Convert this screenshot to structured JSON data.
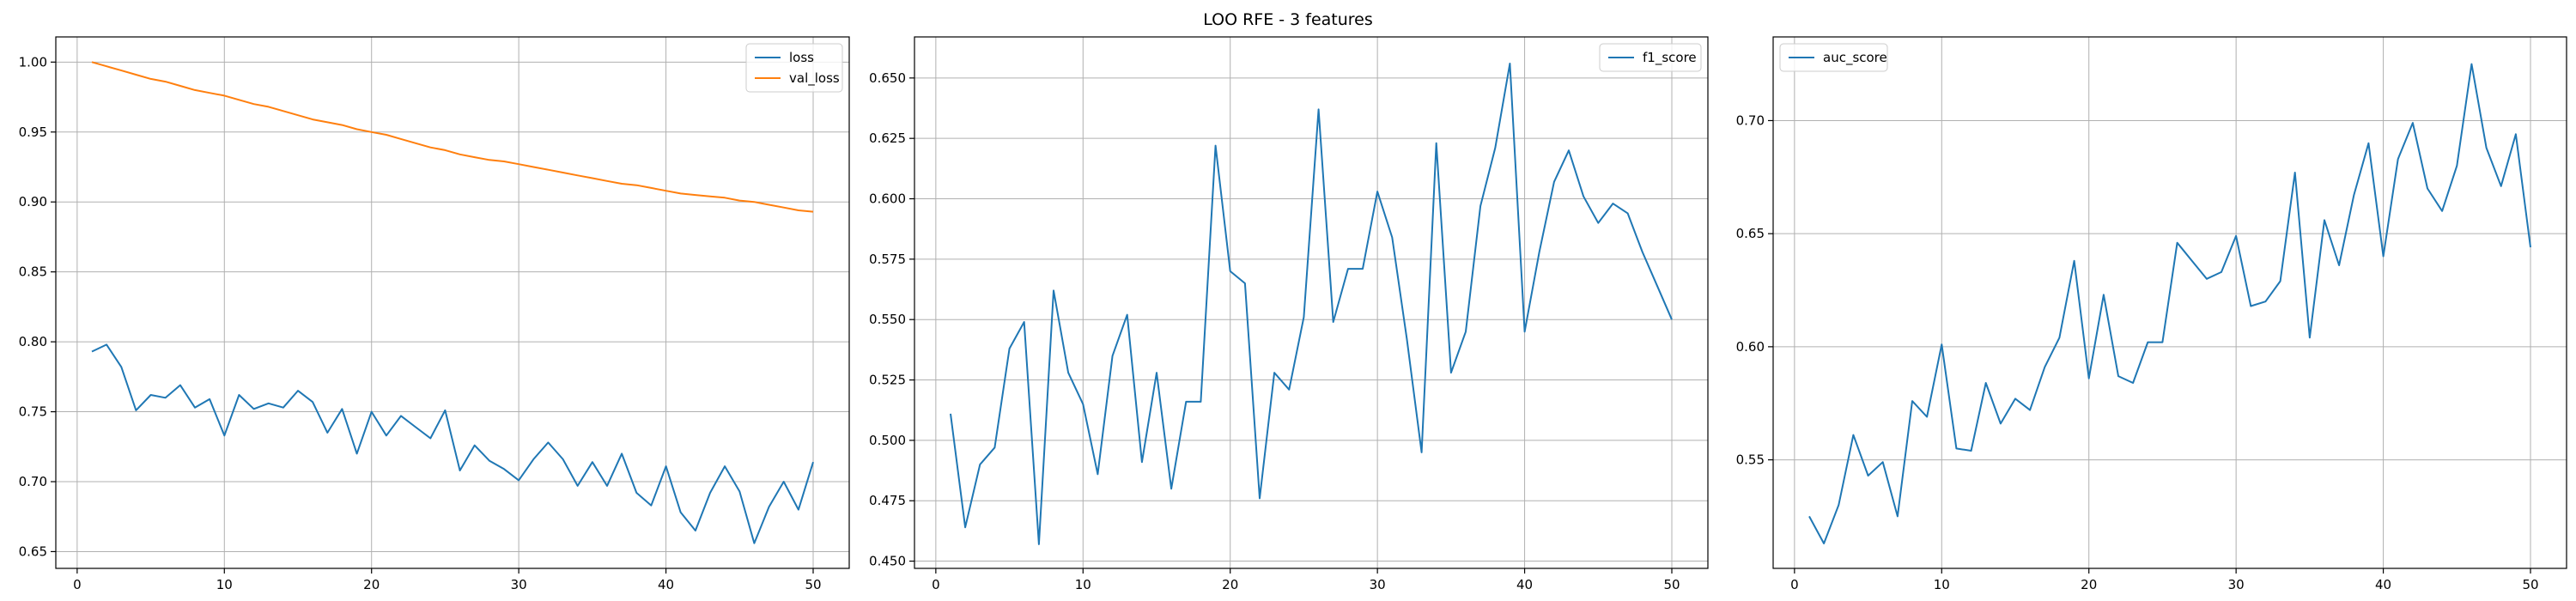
{
  "title": "LOO RFE - 3 features",
  "colors": {
    "loss": "#1f77b4",
    "val_loss": "#ff7f0e",
    "grid": "#b0b0b0",
    "axes": "#000000"
  },
  "chart_data": [
    {
      "type": "line",
      "x": [
        1,
        2,
        3,
        4,
        5,
        6,
        7,
        8,
        9,
        10,
        11,
        12,
        13,
        14,
        15,
        16,
        17,
        18,
        19,
        20,
        21,
        22,
        23,
        24,
        25,
        26,
        27,
        28,
        29,
        30,
        31,
        32,
        33,
        34,
        35,
        36,
        37,
        38,
        39,
        40,
        41,
        42,
        43,
        44,
        45,
        46,
        47,
        48,
        49,
        50
      ],
      "series": [
        {
          "name": "loss",
          "color": "#1f77b4",
          "values": [
            0.793,
            0.798,
            0.782,
            0.751,
            0.762,
            0.76,
            0.769,
            0.753,
            0.759,
            0.733,
            0.762,
            0.752,
            0.756,
            0.753,
            0.765,
            0.757,
            0.735,
            0.752,
            0.72,
            0.75,
            0.733,
            0.747,
            0.739,
            0.731,
            0.751,
            0.708,
            0.726,
            0.715,
            0.709,
            0.701,
            0.716,
            0.728,
            0.716,
            0.697,
            0.714,
            0.697,
            0.72,
            0.692,
            0.683,
            0.711,
            0.678,
            0.665,
            0.692,
            0.711,
            0.693,
            0.656,
            0.682,
            0.7,
            0.68,
            0.714
          ]
        },
        {
          "name": "val_loss",
          "color": "#ff7f0e",
          "values": [
            1.0,
            0.997,
            0.994,
            0.991,
            0.988,
            0.986,
            0.983,
            0.98,
            0.978,
            0.976,
            0.973,
            0.97,
            0.968,
            0.965,
            0.962,
            0.959,
            0.957,
            0.955,
            0.952,
            0.95,
            0.948,
            0.945,
            0.942,
            0.939,
            0.937,
            0.934,
            0.932,
            0.93,
            0.929,
            0.927,
            0.925,
            0.923,
            0.921,
            0.919,
            0.917,
            0.915,
            0.913,
            0.912,
            0.91,
            0.908,
            0.906,
            0.905,
            0.904,
            0.903,
            0.901,
            0.9,
            0.898,
            0.896,
            0.894,
            0.893
          ]
        }
      ],
      "xlim": [
        -1.45,
        52.45
      ],
      "ylim": [
        0.638,
        1.018
      ],
      "xticks": [
        "0",
        "10",
        "20",
        "30",
        "40",
        "50"
      ],
      "yticks": [
        "0.65",
        "0.70",
        "0.75",
        "0.80",
        "0.85",
        "0.90",
        "0.95",
        "1.00"
      ],
      "grid": true,
      "legend": "top-right"
    },
    {
      "type": "line",
      "x": [
        1,
        2,
        3,
        4,
        5,
        6,
        7,
        8,
        9,
        10,
        11,
        12,
        13,
        14,
        15,
        16,
        17,
        18,
        19,
        20,
        21,
        22,
        23,
        24,
        25,
        26,
        27,
        28,
        29,
        30,
        31,
        32,
        33,
        34,
        35,
        36,
        37,
        38,
        39,
        40,
        41,
        42,
        43,
        44,
        45,
        46,
        47,
        48,
        49,
        50
      ],
      "series": [
        {
          "name": "f1_score",
          "color": "#1f77b4",
          "values": [
            0.511,
            0.464,
            0.49,
            0.497,
            0.538,
            0.549,
            0.457,
            0.562,
            0.528,
            0.515,
            0.486,
            0.535,
            0.552,
            0.491,
            0.528,
            0.48,
            0.516,
            0.516,
            0.622,
            0.57,
            0.565,
            0.476,
            0.528,
            0.521,
            0.551,
            0.637,
            0.549,
            0.571,
            0.571,
            0.603,
            0.584,
            0.542,
            0.495,
            0.623,
            0.528,
            0.545,
            0.597,
            0.621,
            0.656,
            0.545,
            0.578,
            0.607,
            0.62,
            0.601,
            0.59,
            0.598,
            0.594,
            0.578,
            0.564,
            0.55
          ]
        }
      ],
      "xlim": [
        -1.45,
        52.45
      ],
      "ylim": [
        0.447,
        0.667
      ],
      "xticks": [
        "0",
        "10",
        "20",
        "30",
        "40",
        "50"
      ],
      "yticks": [
        "0.450",
        "0.475",
        "0.500",
        "0.525",
        "0.550",
        "0.575",
        "0.600",
        "0.625",
        "0.650"
      ],
      "grid": true,
      "legend": "top-right"
    },
    {
      "type": "line",
      "x": [
        1,
        2,
        3,
        4,
        5,
        6,
        7,
        8,
        9,
        10,
        11,
        12,
        13,
        14,
        15,
        16,
        17,
        18,
        19,
        20,
        21,
        22,
        23,
        24,
        25,
        26,
        27,
        28,
        29,
        30,
        31,
        32,
        33,
        34,
        35,
        36,
        37,
        38,
        39,
        40,
        41,
        42,
        43,
        44,
        45,
        46,
        47,
        48,
        49,
        50
      ],
      "series": [
        {
          "name": "auc_score",
          "color": "#1f77b4",
          "values": [
            0.525,
            0.513,
            0.53,
            0.561,
            0.543,
            0.549,
            0.525,
            0.576,
            0.569,
            0.601,
            0.555,
            0.554,
            0.584,
            0.566,
            0.577,
            0.572,
            0.591,
            0.604,
            0.638,
            0.586,
            0.623,
            0.587,
            0.584,
            0.602,
            0.602,
            0.646,
            0.638,
            0.63,
            0.633,
            0.649,
            0.618,
            0.62,
            0.629,
            0.677,
            0.604,
            0.656,
            0.636,
            0.667,
            0.69,
            0.64,
            0.683,
            0.699,
            0.67,
            0.66,
            0.68,
            0.725,
            0.688,
            0.671,
            0.694,
            0.644
          ]
        }
      ],
      "xlim": [
        -1.45,
        52.45
      ],
      "ylim": [
        0.502,
        0.737
      ],
      "xticks": [
        "0",
        "10",
        "20",
        "30",
        "40",
        "50"
      ],
      "yticks": [
        "0.55",
        "0.60",
        "0.65",
        "0.70"
      ],
      "grid": true,
      "legend": "top-left"
    }
  ]
}
